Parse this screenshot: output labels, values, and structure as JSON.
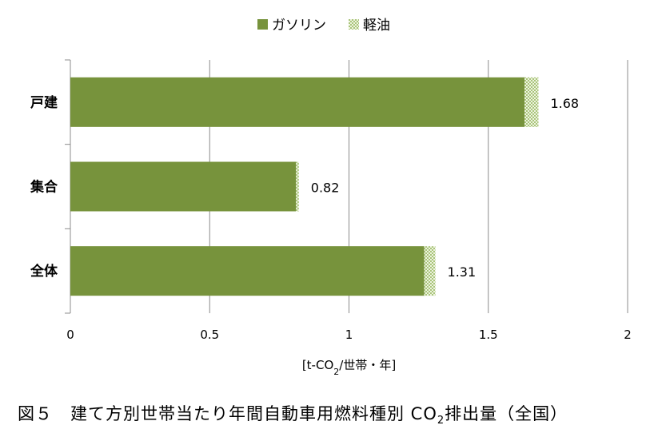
{
  "chart_data": {
    "type": "bar",
    "orientation": "horizontal",
    "stacked": true,
    "categories": [
      "戸建",
      "集合",
      "全体"
    ],
    "series": [
      {
        "name": "ガソリン",
        "values": [
          1.63,
          0.81,
          1.27
        ],
        "color": "#77933c"
      },
      {
        "name": "軽油",
        "values": [
          0.05,
          0.01,
          0.04
        ],
        "color": "#c3d69b",
        "pattern": "checker"
      }
    ],
    "totals": [
      "1.68",
      "0.82",
      "1.31"
    ],
    "xlim": [
      0,
      2
    ],
    "xticks": [
      "0",
      "0.5",
      "1",
      "1.5",
      "2"
    ],
    "xlabel": {
      "prefix": "[t-CO",
      "sub": "2",
      "suffix": "/世帯・年]"
    },
    "grid": true,
    "legend": "top"
  },
  "caption": {
    "prefix": "図５　建て方別世帯当たり年間自動車用燃料種別 CO",
    "sub": "2",
    "suffix": "排出量（全国）"
  }
}
